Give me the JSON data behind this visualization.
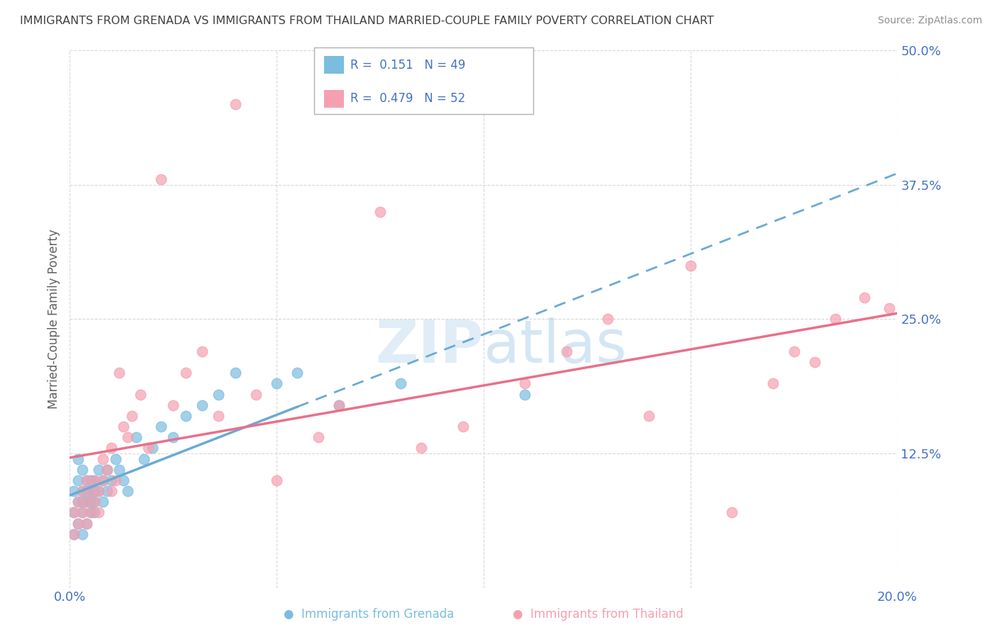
{
  "title": "IMMIGRANTS FROM GRENADA VS IMMIGRANTS FROM THAILAND MARRIED-COUPLE FAMILY POVERTY CORRELATION CHART",
  "source": "Source: ZipAtlas.com",
  "xlabel_label": "Immigrants from Grenada",
  "xlabel_label2": "Immigrants from Thailand",
  "ylabel": "Married-Couple Family Poverty",
  "xlim": [
    0.0,
    0.2
  ],
  "ylim": [
    0.0,
    0.5
  ],
  "xticks": [
    0.0,
    0.05,
    0.1,
    0.15,
    0.2
  ],
  "yticks": [
    0.0,
    0.125,
    0.25,
    0.375,
    0.5
  ],
  "ytick_labels": [
    "",
    "12.5%",
    "25.0%",
    "37.5%",
    "50.0%"
  ],
  "xtick_labels": [
    "0.0%",
    "",
    "",
    "",
    "20.0%"
  ],
  "color_grenada": "#7bbde0",
  "color_thailand": "#f4a0b0",
  "line_color_grenada": "#6aaad4",
  "line_color_thailand": "#e8708a",
  "R_grenada": 0.151,
  "N_grenada": 49,
  "R_thailand": 0.479,
  "N_thailand": 52,
  "background_color": "#ffffff",
  "grid_color": "#d8d8d8",
  "axis_label_color": "#4472c4",
  "title_color": "#404040",
  "grenada_points_x": [
    0.001,
    0.001,
    0.001,
    0.002,
    0.002,
    0.002,
    0.002,
    0.003,
    0.003,
    0.003,
    0.003,
    0.003,
    0.004,
    0.004,
    0.004,
    0.004,
    0.005,
    0.005,
    0.005,
    0.005,
    0.006,
    0.006,
    0.006,
    0.006,
    0.007,
    0.007,
    0.008,
    0.008,
    0.009,
    0.009,
    0.01,
    0.011,
    0.012,
    0.013,
    0.014,
    0.016,
    0.018,
    0.02,
    0.022,
    0.025,
    0.028,
    0.032,
    0.036,
    0.04,
    0.05,
    0.055,
    0.065,
    0.08,
    0.11
  ],
  "grenada_points_y": [
    0.05,
    0.07,
    0.09,
    0.06,
    0.08,
    0.1,
    0.12,
    0.05,
    0.07,
    0.09,
    0.08,
    0.11,
    0.06,
    0.08,
    0.1,
    0.09,
    0.07,
    0.09,
    0.08,
    0.1,
    0.08,
    0.07,
    0.09,
    0.1,
    0.09,
    0.11,
    0.08,
    0.1,
    0.09,
    0.11,
    0.1,
    0.12,
    0.11,
    0.1,
    0.09,
    0.14,
    0.12,
    0.13,
    0.15,
    0.14,
    0.16,
    0.17,
    0.18,
    0.2,
    0.19,
    0.2,
    0.17,
    0.19,
    0.18
  ],
  "thailand_points_x": [
    0.001,
    0.001,
    0.002,
    0.002,
    0.003,
    0.003,
    0.004,
    0.004,
    0.004,
    0.005,
    0.005,
    0.006,
    0.006,
    0.007,
    0.007,
    0.008,
    0.008,
    0.009,
    0.01,
    0.01,
    0.011,
    0.012,
    0.013,
    0.014,
    0.015,
    0.017,
    0.019,
    0.022,
    0.025,
    0.028,
    0.032,
    0.036,
    0.04,
    0.045,
    0.05,
    0.06,
    0.065,
    0.075,
    0.085,
    0.095,
    0.11,
    0.12,
    0.13,
    0.14,
    0.15,
    0.16,
    0.17,
    0.175,
    0.18,
    0.185,
    0.192,
    0.198
  ],
  "thailand_points_y": [
    0.05,
    0.07,
    0.06,
    0.08,
    0.07,
    0.09,
    0.06,
    0.08,
    0.1,
    0.07,
    0.09,
    0.08,
    0.1,
    0.09,
    0.07,
    0.1,
    0.12,
    0.11,
    0.09,
    0.13,
    0.1,
    0.2,
    0.15,
    0.14,
    0.16,
    0.18,
    0.13,
    0.38,
    0.17,
    0.2,
    0.22,
    0.16,
    0.45,
    0.18,
    0.1,
    0.14,
    0.17,
    0.35,
    0.13,
    0.15,
    0.19,
    0.22,
    0.25,
    0.16,
    0.3,
    0.07,
    0.19,
    0.22,
    0.21,
    0.25,
    0.27,
    0.26
  ],
  "grenada_line_start_x": 0.0,
  "grenada_line_end_x": 0.2,
  "thailand_line_start_x": 0.0,
  "thailand_line_end_x": 0.2
}
